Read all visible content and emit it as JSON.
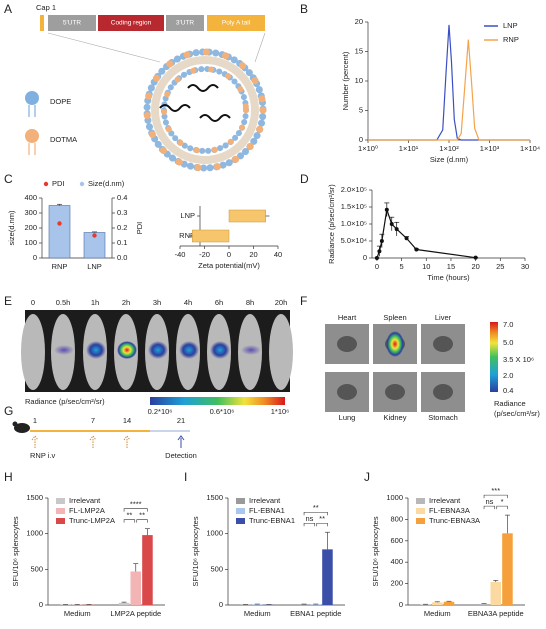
{
  "panel_letters": [
    "A",
    "B",
    "C",
    "D",
    "E",
    "F",
    "G",
    "H",
    "I",
    "J"
  ],
  "diagram": {
    "cap": "Cap 1",
    "segments": [
      "5'UTR",
      "Coding region",
      "3'UTR",
      "Poly A tail"
    ],
    "lipids": [
      "DOPE",
      "DOTMA"
    ]
  },
  "imaging": {
    "timepoints": [
      "0",
      "0.5h",
      "1h",
      "2h",
      "3h",
      "4h",
      "6h",
      "8h",
      "20h"
    ],
    "colorbar_title": "Radiance (p/sec/cm²/sr)",
    "colorbar_labels": [
      "0.2*10⁶",
      "0.6*10⁶",
      "1*10⁶"
    ]
  },
  "organs": {
    "names": [
      "Heart",
      "Spleen",
      "Liver",
      "Lung",
      "Kidney",
      "Stomach"
    ],
    "colorbar_labels": [
      "7.0",
      "5.0",
      "3.5 X 10⁶",
      "2.0",
      "0.4"
    ],
    "colorbar_title": [
      "Radiance",
      "(p/sec/cm²/sr)"
    ]
  },
  "schedule": {
    "days": [
      "1",
      "7",
      "14",
      "21"
    ],
    "labels": [
      "RNP i.v",
      "Detection"
    ]
  },
  "chart_data": [
    {
      "type": "line",
      "x_scale": "log",
      "xlabel": "Size (d.nm)",
      "ylabel": "Number (percent)",
      "xlim": [
        1,
        10000
      ],
      "xticks": [
        {
          "value": 1,
          "label": "1×10⁰"
        },
        {
          "value": 10,
          "label": "1×10¹"
        },
        {
          "value": 100,
          "label": "1×10²"
        },
        {
          "value": 1000,
          "label": "1×10³"
        },
        {
          "value": 10000,
          "label": "1×10⁴"
        }
      ],
      "ylim": [
        0,
        20
      ],
      "yticks": [
        0,
        5,
        10,
        15,
        20
      ],
      "legend": "upper right",
      "x": [
        1,
        50,
        70,
        85,
        100,
        115,
        135,
        160,
        200,
        250,
        300,
        360,
        430,
        550,
        800,
        10000
      ],
      "series": [
        {
          "name": "LNP",
          "color": "#3b4fc4",
          "values": [
            0,
            0,
            1.7,
            11.7,
            19.5,
            13.3,
            3.5,
            0.3,
            0,
            0,
            0,
            0,
            0,
            0,
            0,
            0
          ]
        },
        {
          "name": "RNP",
          "color": "#f5a34a",
          "values": [
            0,
            0,
            0,
            0,
            0,
            0,
            0,
            0,
            1.1,
            9.8,
            17,
            9.8,
            2.0,
            0,
            0,
            0
          ]
        }
      ]
    },
    {
      "type": "bar",
      "categories": [
        "RNP",
        "LNP"
      ],
      "ylabel": "size(d.nm)",
      "y2label": "PDI",
      "legend": "top",
      "ylim": [
        0,
        400
      ],
      "yticks": [
        0,
        100,
        200,
        300,
        400
      ],
      "y2lim": [
        0,
        0.4
      ],
      "y2ticks": [
        {
          "value": 0,
          "label": "0.0"
        },
        0.1,
        0.2,
        0.3,
        0.4
      ],
      "series": [
        {
          "name": "PDI",
          "color": "#e8392f",
          "axis": "y2",
          "values": [
            0.23,
            0.15
          ]
        },
        {
          "name": "Size(d.nm)",
          "color": "#a9c4ea",
          "values": [
            350,
            170
          ],
          "errors": [
            8,
            4
          ]
        }
      ]
    },
    {
      "type": "hbar",
      "categories": [
        "LNP",
        "RNP"
      ],
      "values": [
        30,
        -30
      ],
      "errors": [
        3,
        3
      ],
      "color": "#f7c56b",
      "xlim": [
        -40,
        40
      ],
      "xticks": [
        -40,
        -20,
        0,
        20,
        40
      ],
      "xlabel": "Zeta potential(mV)"
    },
    {
      "type": "line",
      "markers": true,
      "xlabel": "Time (hours)",
      "ylabel": "Radiance (p/sec/cm²/sr)",
      "xlim": [
        -1,
        30
      ],
      "xticks": [
        0,
        5,
        10,
        15,
        20,
        25,
        30
      ],
      "ylim": [
        0,
        200000
      ],
      "yticks": [
        0,
        {
          "value": 50000,
          "label": "5.0×10⁴"
        },
        {
          "value": 100000,
          "label": "1.0×10⁵"
        },
        {
          "value": 150000,
          "label": "1.5×10⁵"
        },
        {
          "value": 200000,
          "label": "2.0×10⁵"
        }
      ],
      "x": [
        0,
        0.5,
        1,
        2,
        3,
        4,
        6,
        8,
        20
      ],
      "color": "#111111",
      "values": [
        0,
        20000,
        50000,
        142000,
        100000,
        85000,
        58000,
        25000,
        1000
      ],
      "errors": [
        0,
        15000,
        20000,
        20000,
        20000,
        20000,
        5000,
        2000,
        500
      ]
    },
    {
      "type": "grouped_bar",
      "categories": [
        "Medium",
        "LMP2A peptide"
      ],
      "ylabel": "SFU/10⁶ splenocytes",
      "legend": "upper left",
      "ylim": [
        0,
        1500
      ],
      "yticks": [
        0,
        500,
        1000,
        1500
      ],
      "annotations": [
        "****",
        "**",
        "**"
      ],
      "series": [
        {
          "name": "Irrelevant",
          "color": "#c8c8c8",
          "values": [
            5,
            30
          ],
          "errors": [
            2,
            10
          ]
        },
        {
          "name": "FL-LMP2A",
          "color": "#f2b4b4",
          "values": [
            5,
            470
          ],
          "errors": [
            2,
            110
          ]
        },
        {
          "name": "Trunc-LMP2A",
          "color": "#d9494a",
          "values": [
            5,
            980
          ],
          "errors": [
            2,
            90
          ]
        }
      ]
    },
    {
      "type": "grouped_bar",
      "categories": [
        "Medium",
        "EBNA1 peptide"
      ],
      "ylabel": "SFU/10⁶ splenocytes",
      "legend": "upper left",
      "ylim": [
        0,
        1500
      ],
      "yticks": [
        0,
        500,
        1000,
        1500
      ],
      "annotations": [
        "**",
        "ns",
        "**"
      ],
      "series": [
        {
          "name": "Irrelevant",
          "color": "#9a9a9a",
          "values": [
            5,
            10
          ],
          "errors": [
            2,
            3
          ]
        },
        {
          "name": "FL-EBNA1",
          "color": "#a9c6ee",
          "values": [
            10,
            10
          ],
          "errors": [
            3,
            3
          ]
        },
        {
          "name": "Trunc-EBNA1",
          "color": "#3b4fa8",
          "values": [
            5,
            780
          ],
          "errors": [
            2,
            240
          ]
        }
      ]
    },
    {
      "type": "grouped_bar",
      "categories": [
        "Medium",
        "EBNA3A peptide"
      ],
      "ylabel": "SFU/10⁶ splenocytes",
      "legend": "upper left",
      "ylim": [
        0,
        1000
      ],
      "yticks": [
        0,
        200,
        400,
        600,
        800,
        1000
      ],
      "annotations": [
        "***",
        "ns",
        "*"
      ],
      "series": [
        {
          "name": "Irrelevant",
          "color": "#b8b8b8",
          "values": [
            5,
            10
          ],
          "errors": [
            2,
            3
          ]
        },
        {
          "name": "FL-EBNA3A",
          "color": "#fcd9a0",
          "values": [
            25,
            215
          ],
          "errors": [
            5,
            15
          ]
        },
        {
          "name": "Trunc-EBNA3A",
          "color": "#f5a03a",
          "values": [
            30,
            670
          ],
          "errors": [
            5,
            170
          ]
        }
      ]
    }
  ]
}
